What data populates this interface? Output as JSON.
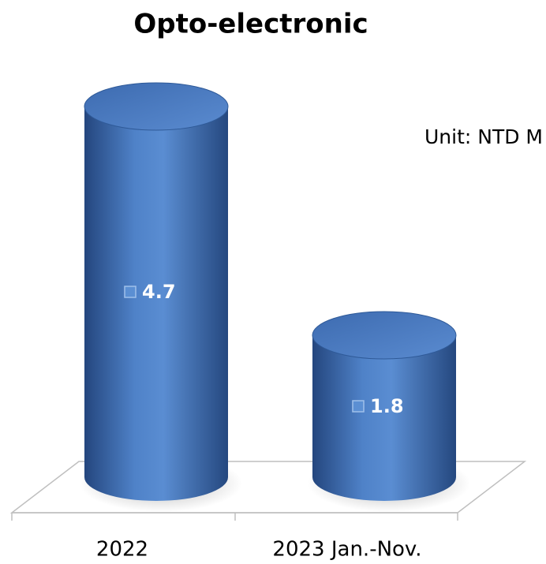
{
  "chart_data": {
    "type": "bar",
    "title": "Opto-electronic",
    "annotation": "Unit: NTD M",
    "categories": [
      "2022",
      "2023 Jan.-Nov."
    ],
    "values": [
      4.7,
      1.8
    ],
    "color": "#3f6fb5"
  }
}
